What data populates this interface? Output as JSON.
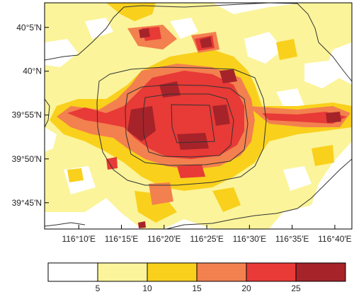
{
  "map": {
    "lon_range": [
      116.1,
      116.7
    ],
    "lat_range": [
      39.7,
      40.13
    ],
    "lon_ticks": [
      {
        "value": 116.1667,
        "label": "116°10′E"
      },
      {
        "value": 116.25,
        "label": "116°15′E"
      },
      {
        "value": 116.3333,
        "label": "116°20′E"
      },
      {
        "value": 116.4167,
        "label": "116°25′E"
      },
      {
        "value": 116.5,
        "label": "116°30′E"
      },
      {
        "value": 116.5833,
        "label": "116°35′E"
      },
      {
        "value": 116.6667,
        "label": "116°40′E"
      }
    ],
    "lat_ticks": [
      {
        "value": 40.0833,
        "label": "40°5′N"
      },
      {
        "value": 40.0,
        "label": "40°N"
      },
      {
        "value": 39.9167,
        "label": "39°55′N"
      },
      {
        "value": 39.8333,
        "label": "39°50′N"
      },
      {
        "value": 39.75,
        "label": "39°45′N"
      }
    ],
    "ring_road_count": 4,
    "boundary_line_color": "#333333"
  },
  "legend": {
    "bins": [
      {
        "range": [
          0,
          5
        ],
        "color": "#ffffff"
      },
      {
        "range": [
          5,
          10
        ],
        "color": "#fbf49a"
      },
      {
        "range": [
          10,
          15
        ],
        "color": "#f9d01c"
      },
      {
        "range": [
          15,
          20
        ],
        "color": "#f3804f"
      },
      {
        "range": [
          20,
          25
        ],
        "color": "#e83a36"
      },
      {
        "range": [
          25,
          30
        ],
        "color": "#a6232a"
      }
    ],
    "labels": [
      "5",
      "10",
      "15",
      "20",
      "25"
    ]
  }
}
